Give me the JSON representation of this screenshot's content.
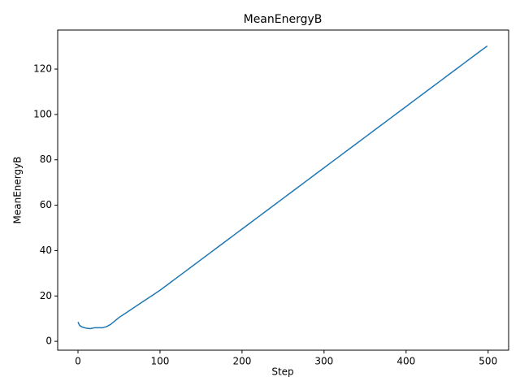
{
  "chart_data": {
    "type": "line",
    "title": "MeanEnergyB",
    "x_label": "Step",
    "y_label": "MeanEnergyB",
    "x": [
      0,
      2,
      5,
      10,
      15,
      20,
      25,
      30,
      35,
      40,
      45,
      50,
      60,
      70,
      80,
      90,
      100,
      110,
      120,
      130,
      140,
      150,
      160,
      170,
      180,
      190,
      200,
      210,
      220,
      230,
      240,
      250,
      260,
      270,
      280,
      290,
      300,
      310,
      320,
      330,
      340,
      350,
      360,
      370,
      380,
      390,
      400,
      410,
      420,
      430,
      440,
      450,
      460,
      470,
      480,
      490,
      499
    ],
    "series": [
      {
        "name": "MeanEnergyB",
        "color": "#1f77b4",
        "values": [
          8.5,
          7.0,
          6.3,
          5.8,
          5.6,
          6.0,
          6.0,
          6.0,
          6.5,
          7.5,
          9.0,
          10.5,
          12.9,
          15.3,
          17.7,
          20.1,
          22.5,
          25.2,
          27.9,
          30.6,
          33.3,
          36,
          38.7,
          41.4,
          44.1,
          46.8,
          49.5,
          52.2,
          54.9,
          57.6,
          60.3,
          63,
          65.7,
          68.4,
          71.1,
          73.8,
          76.5,
          79.2,
          81.9,
          84.6,
          87.3,
          90,
          92.7,
          95.4,
          98.1,
          100.8,
          103.5,
          106.2,
          108.9,
          111.6,
          114.3,
          117,
          119.7,
          122.4,
          125.1,
          127.8,
          130.2
        ]
      }
    ],
    "xlim": [
      -24.75,
      525
    ],
    "ylim": [
      -3.9,
      137.2
    ],
    "xticks": [
      0,
      100,
      200,
      300,
      400,
      500
    ],
    "yticks": [
      0,
      20,
      40,
      60,
      80,
      100,
      120
    ],
    "grid": false
  }
}
